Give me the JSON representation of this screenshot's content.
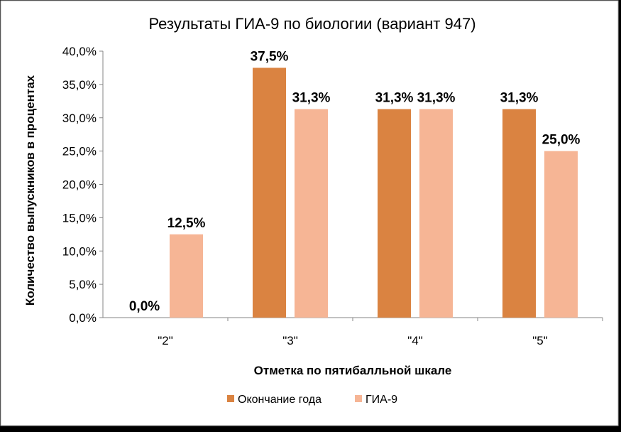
{
  "chart_data": {
    "type": "bar",
    "title": "Результаты ГИА-9 по биологии (вариант 947)",
    "xlabel": "Отметка по пятибалльной шкале",
    "ylabel": "Количество выпускников в процентах",
    "categories": [
      "\"2\"",
      "\"3\"",
      "\"4\"",
      "\"5\""
    ],
    "series": [
      {
        "name": "Окончание года",
        "values": [
          0.0,
          37.5,
          31.3,
          31.3
        ],
        "labels": [
          "0,0%",
          "37,5%",
          "31,3%",
          "31,3%"
        ],
        "color": "#DA8341"
      },
      {
        "name": "ГИА-9",
        "values": [
          12.5,
          31.3,
          31.3,
          25.0
        ],
        "labels": [
          "12,5%",
          "31,3%",
          "31,3%",
          "25,0%"
        ],
        "color": "#F6B595"
      }
    ],
    "ylim": [
      0,
      40
    ],
    "yticks": [
      "0,0%",
      "5,0%",
      "10,0%",
      "15,0%",
      "20,0%",
      "25,0%",
      "30,0%",
      "35,0%",
      "40,0%"
    ],
    "grid": false,
    "legend_position": "bottom",
    "background": "#FFFFFF",
    "frame_color": "#A6A6A6"
  }
}
